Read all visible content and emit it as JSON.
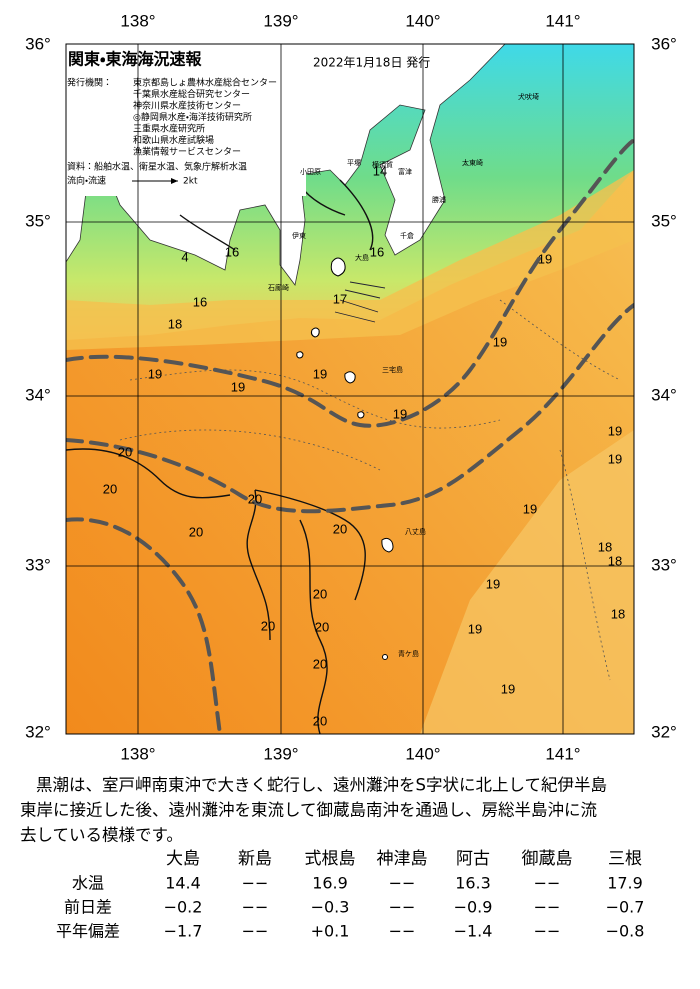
{
  "header": {
    "title": "関東・東海海況速報",
    "date": "2022年1月18日 発行",
    "issuers_label": "発行機関：",
    "issuers": [
      "東京都島しょ農林水産総合センター",
      "千葉県水産総合研究センター",
      "神奈川県水産技術センター",
      "◎静岡県水産・海洋技術研究所",
      "三重県水産研究所",
      "和歌山県水産試験場",
      "漁業情報サービスセンター"
    ],
    "sources": "資料：船舶水温、衛星水温、気象庁解析水温",
    "flow_label": "流向・流速",
    "flow_scale": "2kt"
  },
  "axes": {
    "longitudes": [
      "138°",
      "139°",
      "140°",
      "141°"
    ],
    "latitudes": [
      "36°",
      "35°",
      "34°",
      "33°",
      "32°"
    ]
  },
  "map": {
    "place_labels": [
      "犬吠埼",
      "太東崎",
      "勝浦",
      "千倉",
      "富津",
      "横須賀",
      "平塚",
      "小田原",
      "伊東",
      "大島",
      "石廊崎",
      "三宅島",
      "八丈島",
      "青ケ島"
    ],
    "contour_labels": [
      "14",
      "16",
      "16",
      "4",
      "17",
      "16",
      "18",
      "19",
      "19",
      "19",
      "19",
      "19",
      "19",
      "19",
      "20",
      "19",
      "20",
      "20",
      "20",
      "20",
      "19",
      "18",
      "18",
      "19",
      "20",
      "18",
      "19",
      "20",
      "20",
      "20",
      "19",
      "20"
    ]
  },
  "description": [
    "黒潮は、室戸岬南東沖で大きく蛇行し、遠州灘沖をS字状に北上して紀伊半島",
    "東岸に接近した後、遠州灘沖を東流して御蔵島南沖を通過し、房総半島沖に流",
    "去している模様です。"
  ],
  "table": {
    "columns": [
      "大島",
      "新島",
      "式根島",
      "神津島",
      "阿古",
      "御蔵島",
      "三根"
    ],
    "rows": [
      {
        "label": "水温",
        "values": [
          "14.4",
          "−−",
          "16.9",
          "−−",
          "16.3",
          "−−",
          "17.9"
        ]
      },
      {
        "label": "前日差",
        "values": [
          "−0.2",
          "−−",
          "−0.3",
          "−−",
          "−0.9",
          "−−",
          "−0.7"
        ]
      },
      {
        "label": "平年偏差",
        "values": [
          "−1.7",
          "−−",
          "+0.1",
          "−−",
          "−1.4",
          "−−",
          "−0.8"
        ]
      }
    ]
  }
}
